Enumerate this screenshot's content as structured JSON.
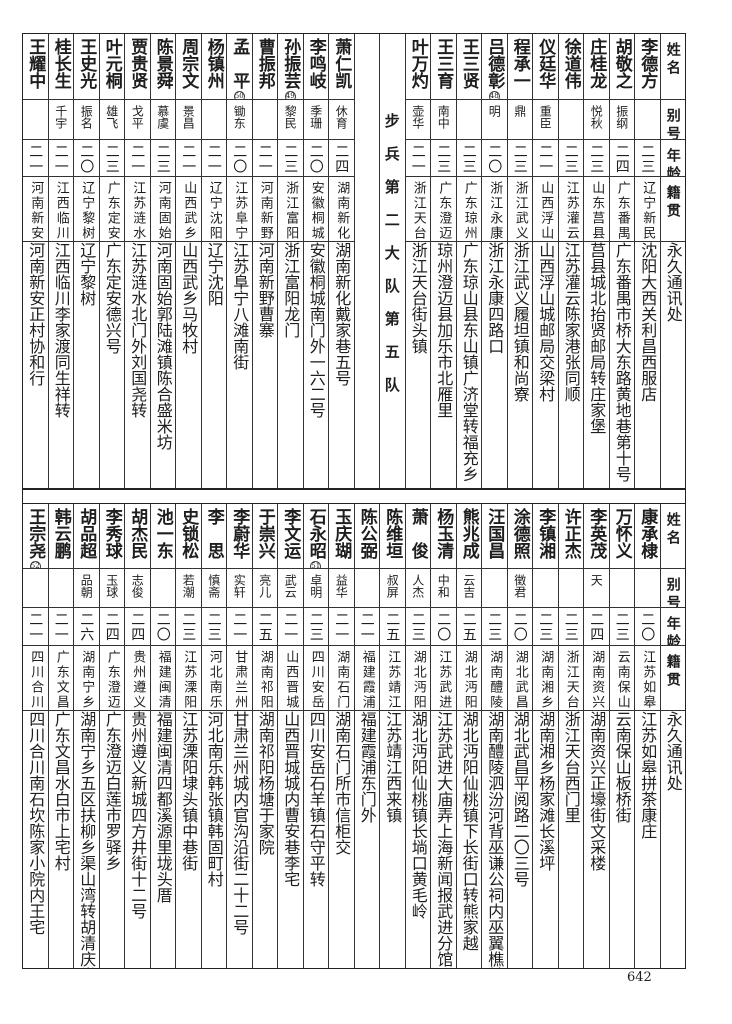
{
  "header": {
    "name": "姓名",
    "alias": "别号",
    "age": "年龄",
    "native": "籍贯",
    "address": "永久通讯处"
  },
  "top_table": {
    "section_label": "步兵第二大队第五队",
    "section_after_index": 9,
    "rows": [
      {
        "name": "李德方",
        "footnote": "",
        "alias": "",
        "age": "二三",
        "native": "辽宁新民",
        "address": "沈阳大西关利昌西服店"
      },
      {
        "name": "胡敬之",
        "footnote": "",
        "alias": "振纲",
        "age": "二四",
        "native": "广东番禺",
        "address": "广东番禺市桥大东路黄地巷第十号"
      },
      {
        "name": "庄桂龙",
        "footnote": "",
        "alias": "悦秋",
        "age": "二三",
        "native": "山东莒县",
        "address": "莒县城北抬贤邮局转庄家堡"
      },
      {
        "name": "徐道伟",
        "footnote": "",
        "alias": "",
        "age": "二三",
        "native": "江苏灌云",
        "address": "江苏灌云陈家港张同顺"
      },
      {
        "name": "仪廷华",
        "footnote": "",
        "alias": "重臣",
        "age": "二一",
        "native": "山西浮山",
        "address": "山西浮山城邮局交梁村"
      },
      {
        "name": "程承一",
        "footnote": "",
        "alias": "鼎",
        "age": "二三",
        "native": "浙江武义",
        "address": "浙江武义履坦镇和尚寮"
      },
      {
        "name": "吕德彰",
        "footnote": "48",
        "alias": "明",
        "age": "二〇",
        "native": "浙江永康",
        "address": "浙江永康四路口"
      },
      {
        "name": "王三贤",
        "footnote": "",
        "alias": "",
        "age": "二三",
        "native": "广东琼州",
        "address": "广东琼山县东山镇广济堂转福充乡"
      },
      {
        "name": "王三育",
        "footnote": "",
        "alias": "南中",
        "age": "二三",
        "native": "广东澄迈",
        "address": "琼州澄迈县加乐市北雁里"
      },
      {
        "name": "叶万灼",
        "footnote": "",
        "alias": "壶华",
        "age": "二一",
        "native": "浙江天台",
        "address": "浙江天台街头镇"
      },
      {
        "name": "萧仁凯",
        "footnote": "",
        "alias": "休育",
        "age": "二四",
        "native": "湖南新化",
        "address": "湖南新化戴家巷五号"
      },
      {
        "name": "李鸣岐",
        "footnote": "",
        "alias": "季珊",
        "age": "二〇",
        "native": "安徽桐城",
        "address": "安徽桐城南门外一六二号"
      },
      {
        "name": "孙振芸",
        "footnote": "49",
        "alias": "黎民",
        "age": "二三",
        "native": "浙江富阳",
        "address": "浙江富阳龙门"
      },
      {
        "name": "曹振邦",
        "footnote": "",
        "alias": "",
        "age": "二一",
        "native": "河南新野",
        "address": "河南新野曹寨"
      },
      {
        "name": "孟　平",
        "footnote": "50",
        "alias": "锄东",
        "age": "二〇",
        "native": "江苏阜宁",
        "address": "江苏阜宁八滩南街"
      },
      {
        "name": "杨镇州",
        "footnote": "",
        "alias": "",
        "age": "二一",
        "native": "辽宁沈阳",
        "address": "辽宁沈阳"
      },
      {
        "name": "周宗文",
        "footnote": "",
        "alias": "景昌",
        "age": "二一",
        "native": "山西武乡",
        "address": "山西武乡马牧村"
      },
      {
        "name": "陈景舜",
        "footnote": "",
        "alias": "慕虞",
        "age": "二三",
        "native": "河南固始",
        "address": "河南固始郭陆滩镇陈合盛米坊"
      },
      {
        "name": "贾贵贤",
        "footnote": "",
        "alias": "戈平",
        "age": "二一",
        "native": "江苏涟水",
        "address": "江苏涟水北门外刘国尧转"
      },
      {
        "name": "叶元桐",
        "footnote": "",
        "alias": "雄飞",
        "age": "二三",
        "native": "广东定安",
        "address": "广东定安德兴号"
      },
      {
        "name": "王史光",
        "footnote": "",
        "alias": "振名",
        "age": "二〇",
        "native": "辽宁黎树",
        "address": "辽宁黎树"
      },
      {
        "name": "桂长生",
        "footnote": "",
        "alias": "千宇",
        "age": "二一",
        "native": "江西临川",
        "address": "江西临川李家渡同生祥转"
      },
      {
        "name": "王耀中",
        "footnote": "",
        "alias": "",
        "age": "二一",
        "native": "河南新安",
        "address": "河南新安正村协和行"
      }
    ]
  },
  "bottom_table": {
    "rows": [
      {
        "name": "康承棣",
        "footnote": "",
        "alias": "",
        "age": "二〇",
        "native": "江苏如皋",
        "address": "江苏如皋拼茶康庄"
      },
      {
        "name": "万怀义",
        "footnote": "",
        "alias": "",
        "age": "二三",
        "native": "云南保山",
        "address": "云南保山板桥街"
      },
      {
        "name": "李英茂",
        "footnote": "",
        "alias": "天",
        "age": "二四",
        "native": "湖南资兴",
        "address": "湖南资兴正壕街文采楼"
      },
      {
        "name": "许正杰",
        "footnote": "",
        "alias": "",
        "age": "二三",
        "native": "浙江天台",
        "address": "浙江天台西门里"
      },
      {
        "name": "李镇湘",
        "footnote": "",
        "alias": "",
        "age": "二三",
        "native": "湖南湘乡",
        "address": "湖南湘乡杨家滩长溪坪"
      },
      {
        "name": "涂德照",
        "footnote": "",
        "alias": "徵君",
        "age": "二〇",
        "native": "湖北武昌",
        "address": "湖北武昌平阅路二〇三号"
      },
      {
        "name": "汪国昌",
        "footnote": "",
        "alias": "",
        "age": "二三",
        "native": "湖南醴陵",
        "address": "湖南醴陵泗汾河背巫谦公祠内巫翼樵转交"
      },
      {
        "name": "熊兆成",
        "footnote": "",
        "alias": "云吉",
        "age": "二五",
        "native": "湖北沔阳",
        "address": "湖北沔阳仙桃镇下长街口转熊家越"
      },
      {
        "name": "杨玉清",
        "footnote": "",
        "alias": "中和",
        "age": "二〇",
        "native": "江苏武进",
        "address": "江苏武进大庙弄上海新闻报武进分馆"
      },
      {
        "name": "萧　俊",
        "footnote": "",
        "alias": "人杰",
        "age": "二三",
        "native": "湖北沔阳",
        "address": "湖北沔阳仙桃镇长埫口黄毛岭"
      },
      {
        "name": "陈维垣",
        "footnote": "",
        "alias": "叔屏",
        "age": "二五",
        "native": "江苏靖江",
        "address": "江苏靖江西来镇"
      },
      {
        "name": "陈公弼",
        "footnote": "",
        "alias": "",
        "age": "二一",
        "native": "福建霞浦",
        "address": "福建霞浦东门外"
      },
      {
        "name": "玉庆瑚",
        "footnote": "",
        "alias": "益华",
        "age": "二一",
        "native": "湖南石门",
        "address": "湖南石门所市信柜交"
      },
      {
        "name": "石永昭",
        "footnote": "51",
        "alias": "卓明",
        "age": "二三",
        "native": "四川安岳",
        "address": "四川安岳石羊镇石守平转"
      },
      {
        "name": "李文运",
        "footnote": "",
        "alias": "武云",
        "age": "二一",
        "native": "山西晋城",
        "address": "山西晋城城内曹安巷李宅"
      },
      {
        "name": "于崇兴",
        "footnote": "",
        "alias": "亮儿",
        "age": "二五",
        "native": "湖南祁阳",
        "address": "湖南祁阳杨塘于家院"
      },
      {
        "name": "李蔚华",
        "footnote": "",
        "alias": "实轩",
        "age": "二一",
        "native": "甘肃兰州",
        "address": "甘肃兰州城内官沟沿街二十二号"
      },
      {
        "name": "李　思",
        "footnote": "",
        "alias": "慎斋",
        "age": "二三",
        "native": "河北南乐",
        "address": "河北南乐韩张镇韩固町村"
      },
      {
        "name": "史锁松",
        "footnote": "",
        "alias": "若潮",
        "age": "二三",
        "native": "江苏溧阳",
        "address": "江苏溧阳埭头镇中巷街"
      },
      {
        "name": "池一东",
        "footnote": "",
        "alias": "",
        "age": "二〇",
        "native": "福建闽清",
        "address": "福建闽清四都溪源里垅头厝"
      },
      {
        "name": "胡杰民",
        "footnote": "",
        "alias": "志俊",
        "age": "二四",
        "native": "贵州遵义",
        "address": "贵州遵义新城四方井街十二号"
      },
      {
        "name": "李秀球",
        "footnote": "",
        "alias": "玉球",
        "age": "二四",
        "native": "广东澄迈",
        "address": "广东澄迈白莲市罗驿乡"
      },
      {
        "name": "胡品超",
        "footnote": "",
        "alias": "品朝",
        "age": "二六",
        "native": "湖南宁乡",
        "address": "湖南宁乡五区扶柳乡渠山湾转胡清庆堂"
      },
      {
        "name": "韩云鹏",
        "footnote": "",
        "alias": "",
        "age": "二一",
        "native": "广东文昌",
        "address": "广东文昌水白市上宅村"
      },
      {
        "name": "王宗尧",
        "footnote": "52",
        "alias": "",
        "age": "二一",
        "native": "四川合川",
        "address": "四川合川南石坎陈家小院内王宅"
      }
    ]
  },
  "page_number": "642"
}
